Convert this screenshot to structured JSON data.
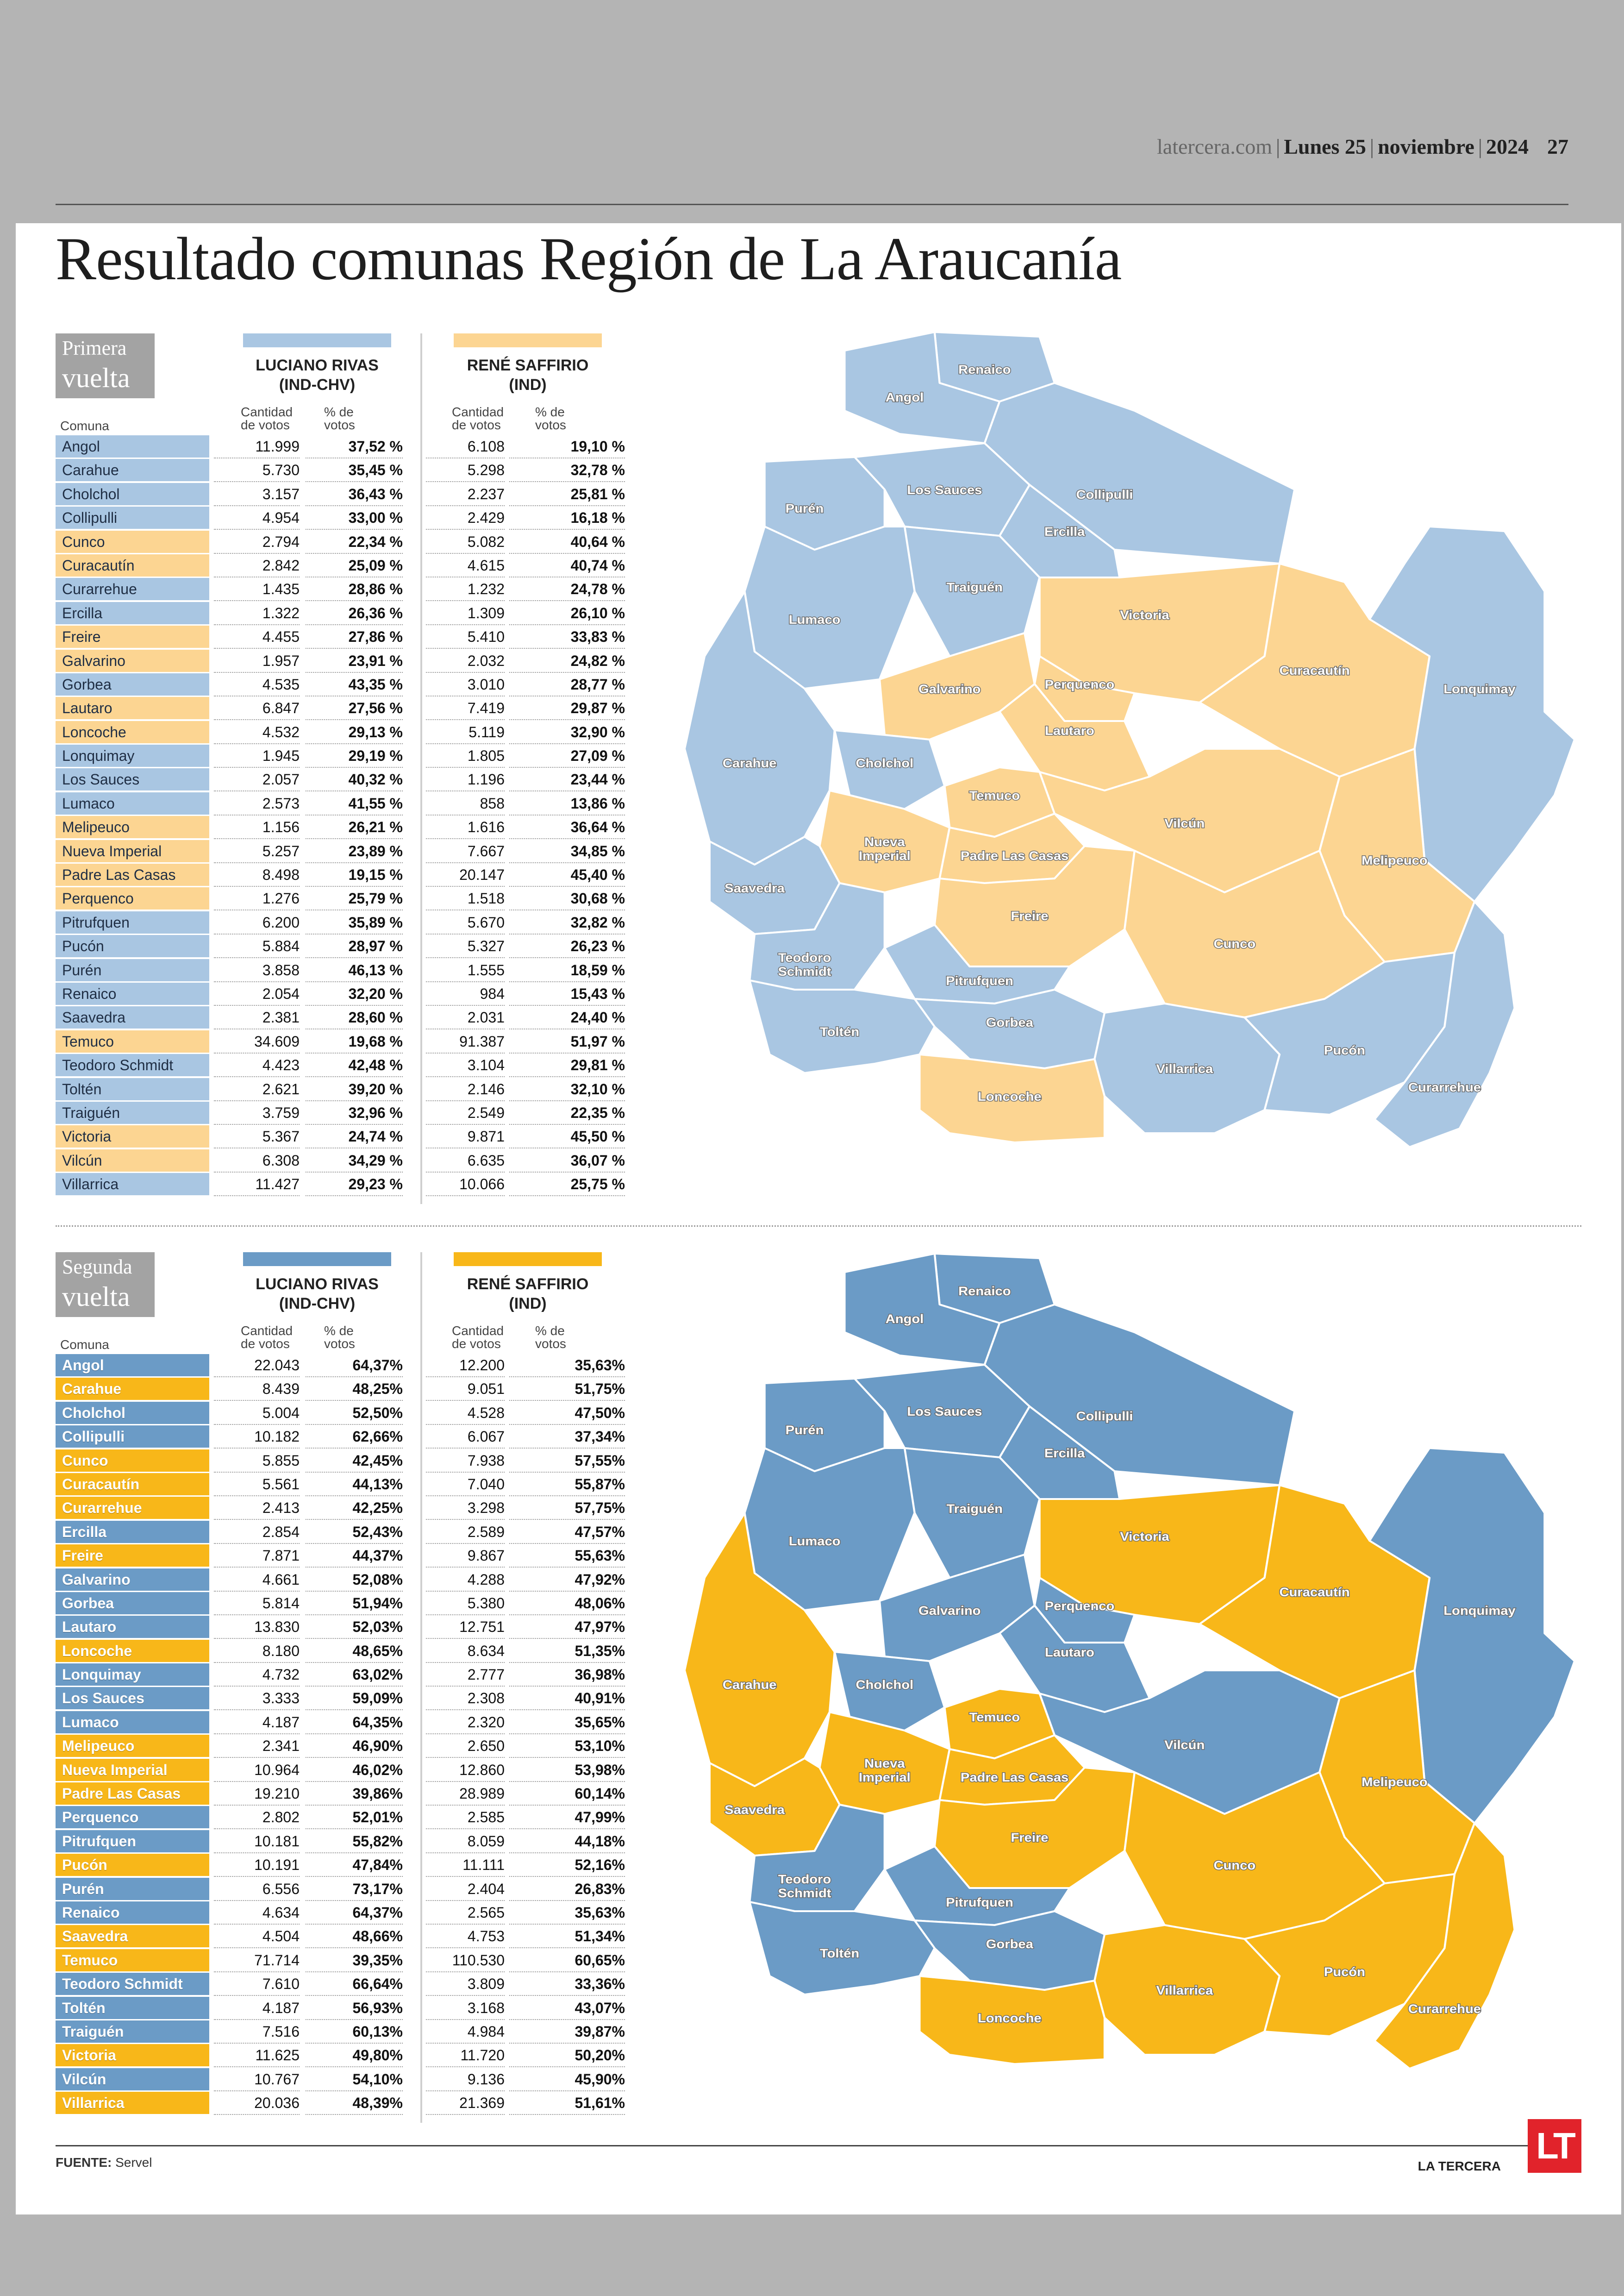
{
  "header": {
    "site": "latercera.com",
    "day": "Lunes 25",
    "month": "noviembre",
    "year": "2024",
    "page": "27"
  },
  "title": "Resultado comunas Región de La Araucanía",
  "colors": {
    "round1_rivas": "#a9c6e2",
    "round1_saffirio": "#fcd592",
    "round2_rivas": "#6b9bc6",
    "round2_saffirio": "#f8b719"
  },
  "labels": {
    "comuna": "Comuna",
    "cantidad": "Cantidad de votos",
    "porcentaje": "% de votos"
  },
  "candidates": [
    {
      "name": "LUCIANO RIVAS",
      "party": "(IND-CHV)"
    },
    {
      "name": "RENÉ SAFFIRIO",
      "party": "(IND)"
    }
  ],
  "rounds": [
    {
      "badge": [
        "Primera",
        "vuelta"
      ],
      "rows": [
        {
          "comuna": "Angol",
          "winner": "rivas",
          "rivas_votes": "11.999",
          "rivas_pct": "37,52 %",
          "saffirio_votes": "6.108",
          "saffirio_pct": "19,10 %"
        },
        {
          "comuna": "Carahue",
          "winner": "rivas",
          "rivas_votes": "5.730",
          "rivas_pct": "35,45 %",
          "saffirio_votes": "5.298",
          "saffirio_pct": "32,78 %"
        },
        {
          "comuna": "Cholchol",
          "winner": "rivas",
          "rivas_votes": "3.157",
          "rivas_pct": "36,43 %",
          "saffirio_votes": "2.237",
          "saffirio_pct": "25,81 %"
        },
        {
          "comuna": "Collipulli",
          "winner": "rivas",
          "rivas_votes": "4.954",
          "rivas_pct": "33,00 %",
          "saffirio_votes": "2.429",
          "saffirio_pct": "16,18 %"
        },
        {
          "comuna": "Cunco",
          "winner": "saffirio",
          "rivas_votes": "2.794",
          "rivas_pct": "22,34 %",
          "saffirio_votes": "5.082",
          "saffirio_pct": "40,64 %"
        },
        {
          "comuna": "Curacautín",
          "winner": "saffirio",
          "rivas_votes": "2.842",
          "rivas_pct": "25,09 %",
          "saffirio_votes": "4.615",
          "saffirio_pct": "40,74 %"
        },
        {
          "comuna": "Curarrehue",
          "winner": "rivas",
          "rivas_votes": "1.435",
          "rivas_pct": "28,86 %",
          "saffirio_votes": "1.232",
          "saffirio_pct": "24,78 %"
        },
        {
          "comuna": "Ercilla",
          "winner": "rivas",
          "rivas_votes": "1.322",
          "rivas_pct": "26,36 %",
          "saffirio_votes": "1.309",
          "saffirio_pct": "26,10 %"
        },
        {
          "comuna": "Freire",
          "winner": "saffirio",
          "rivas_votes": "4.455",
          "rivas_pct": "27,86 %",
          "saffirio_votes": "5.410",
          "saffirio_pct": "33,83 %"
        },
        {
          "comuna": "Galvarino",
          "winner": "saffirio",
          "rivas_votes": "1.957",
          "rivas_pct": "23,91 %",
          "saffirio_votes": "2.032",
          "saffirio_pct": "24,82 %"
        },
        {
          "comuna": "Gorbea",
          "winner": "rivas",
          "rivas_votes": "4.535",
          "rivas_pct": "43,35 %",
          "saffirio_votes": "3.010",
          "saffirio_pct": "28,77 %"
        },
        {
          "comuna": "Lautaro",
          "winner": "saffirio",
          "rivas_votes": "6.847",
          "rivas_pct": "27,56 %",
          "saffirio_votes": "7.419",
          "saffirio_pct": "29,87 %"
        },
        {
          "comuna": "Loncoche",
          "winner": "saffirio",
          "rivas_votes": "4.532",
          "rivas_pct": "29,13 %",
          "saffirio_votes": "5.119",
          "saffirio_pct": "32,90 %"
        },
        {
          "comuna": "Lonquimay",
          "winner": "rivas",
          "rivas_votes": "1.945",
          "rivas_pct": "29,19 %",
          "saffirio_votes": "1.805",
          "saffirio_pct": "27,09 %"
        },
        {
          "comuna": "Los Sauces",
          "winner": "rivas",
          "rivas_votes": "2.057",
          "rivas_pct": "40,32 %",
          "saffirio_votes": "1.196",
          "saffirio_pct": "23,44 %"
        },
        {
          "comuna": "Lumaco",
          "winner": "rivas",
          "rivas_votes": "2.573",
          "rivas_pct": "41,55 %",
          "saffirio_votes": "858",
          "saffirio_pct": "13,86 %"
        },
        {
          "comuna": "Melipeuco",
          "winner": "saffirio",
          "rivas_votes": "1.156",
          "rivas_pct": "26,21 %",
          "saffirio_votes": "1.616",
          "saffirio_pct": "36,64 %"
        },
        {
          "comuna": "Nueva Imperial",
          "winner": "saffirio",
          "rivas_votes": "5.257",
          "rivas_pct": "23,89 %",
          "saffirio_votes": "7.667",
          "saffirio_pct": "34,85 %"
        },
        {
          "comuna": "Padre Las Casas",
          "winner": "saffirio",
          "rivas_votes": "8.498",
          "rivas_pct": "19,15 %",
          "saffirio_votes": "20.147",
          "saffirio_pct": "45,40 %"
        },
        {
          "comuna": "Perquenco",
          "winner": "saffirio",
          "rivas_votes": "1.276",
          "rivas_pct": "25,79 %",
          "saffirio_votes": "1.518",
          "saffirio_pct": "30,68 %"
        },
        {
          "comuna": "Pitrufquen",
          "winner": "rivas",
          "rivas_votes": "6.200",
          "rivas_pct": "35,89 %",
          "saffirio_votes": "5.670",
          "saffirio_pct": "32,82 %"
        },
        {
          "comuna": "Pucón",
          "winner": "rivas",
          "rivas_votes": "5.884",
          "rivas_pct": "28,97 %",
          "saffirio_votes": "5.327",
          "saffirio_pct": "26,23 %"
        },
        {
          "comuna": "Purén",
          "winner": "rivas",
          "rivas_votes": "3.858",
          "rivas_pct": "46,13 %",
          "saffirio_votes": "1.555",
          "saffirio_pct": "18,59 %"
        },
        {
          "comuna": "Renaico",
          "winner": "rivas",
          "rivas_votes": "2.054",
          "rivas_pct": "32,20 %",
          "saffirio_votes": "984",
          "saffirio_pct": "15,43 %"
        },
        {
          "comuna": "Saavedra",
          "winner": "rivas",
          "rivas_votes": "2.381",
          "rivas_pct": "28,60 %",
          "saffirio_votes": "2.031",
          "saffirio_pct": "24,40 %"
        },
        {
          "comuna": "Temuco",
          "winner": "saffirio",
          "rivas_votes": "34.609",
          "rivas_pct": "19,68 %",
          "saffirio_votes": "91.387",
          "saffirio_pct": "51,97 %"
        },
        {
          "comuna": "Teodoro Schmidt",
          "winner": "rivas",
          "rivas_votes": "4.423",
          "rivas_pct": "42,48 %",
          "saffirio_votes": "3.104",
          "saffirio_pct": "29,81 %"
        },
        {
          "comuna": "Toltén",
          "winner": "rivas",
          "rivas_votes": "2.621",
          "rivas_pct": "39,20 %",
          "saffirio_votes": "2.146",
          "saffirio_pct": "32,10 %"
        },
        {
          "comuna": "Traiguén",
          "winner": "rivas",
          "rivas_votes": "3.759",
          "rivas_pct": "32,96 %",
          "saffirio_votes": "2.549",
          "saffirio_pct": "22,35 %"
        },
        {
          "comuna": "Victoria",
          "winner": "saffirio",
          "rivas_votes": "5.367",
          "rivas_pct": "24,74 %",
          "saffirio_votes": "9.871",
          "saffirio_pct": "45,50 %"
        },
        {
          "comuna": "Vilcún",
          "winner": "saffirio",
          "rivas_votes": "6.308",
          "rivas_pct": "34,29 %",
          "saffirio_votes": "6.635",
          "saffirio_pct": "36,07 %"
        },
        {
          "comuna": "Villarrica",
          "winner": "rivas",
          "rivas_votes": "11.427",
          "rivas_pct": "29,23 %",
          "saffirio_votes": "10.066",
          "saffirio_pct": "25,75 %"
        }
      ]
    },
    {
      "badge": [
        "Segunda",
        "vuelta"
      ],
      "rows": [
        {
          "comuna": "Angol",
          "winner": "rivas",
          "rivas_votes": "22.043",
          "rivas_pct": "64,37%",
          "saffirio_votes": "12.200",
          "saffirio_pct": "35,63%"
        },
        {
          "comuna": "Carahue",
          "winner": "saffirio",
          "rivas_votes": "8.439",
          "rivas_pct": "48,25%",
          "saffirio_votes": "9.051",
          "saffirio_pct": "51,75%"
        },
        {
          "comuna": "Cholchol",
          "winner": "rivas",
          "rivas_votes": "5.004",
          "rivas_pct": "52,50%",
          "saffirio_votes": "4.528",
          "saffirio_pct": "47,50%"
        },
        {
          "comuna": "Collipulli",
          "winner": "rivas",
          "rivas_votes": "10.182",
          "rivas_pct": "62,66%",
          "saffirio_votes": "6.067",
          "saffirio_pct": "37,34%"
        },
        {
          "comuna": "Cunco",
          "winner": "saffirio",
          "rivas_votes": "5.855",
          "rivas_pct": "42,45%",
          "saffirio_votes": "7.938",
          "saffirio_pct": "57,55%"
        },
        {
          "comuna": "Curacautín",
          "winner": "saffirio",
          "rivas_votes": "5.561",
          "rivas_pct": "44,13%",
          "saffirio_votes": "7.040",
          "saffirio_pct": "55,87%"
        },
        {
          "comuna": "Curarrehue",
          "winner": "saffirio",
          "rivas_votes": "2.413",
          "rivas_pct": "42,25%",
          "saffirio_votes": "3.298",
          "saffirio_pct": "57,75%"
        },
        {
          "comuna": "Ercilla",
          "winner": "rivas",
          "rivas_votes": "2.854",
          "rivas_pct": "52,43%",
          "saffirio_votes": "2.589",
          "saffirio_pct": "47,57%"
        },
        {
          "comuna": "Freire",
          "winner": "saffirio",
          "rivas_votes": "7.871",
          "rivas_pct": "44,37%",
          "saffirio_votes": "9.867",
          "saffirio_pct": "55,63%"
        },
        {
          "comuna": "Galvarino",
          "winner": "rivas",
          "rivas_votes": "4.661",
          "rivas_pct": "52,08%",
          "saffirio_votes": "4.288",
          "saffirio_pct": "47,92%"
        },
        {
          "comuna": "Gorbea",
          "winner": "rivas",
          "rivas_votes": "5.814",
          "rivas_pct": "51,94%",
          "saffirio_votes": "5.380",
          "saffirio_pct": "48,06%"
        },
        {
          "comuna": "Lautaro",
          "winner": "rivas",
          "rivas_votes": "13.830",
          "rivas_pct": "52,03%",
          "saffirio_votes": "12.751",
          "saffirio_pct": "47,97%"
        },
        {
          "comuna": "Loncoche",
          "winner": "saffirio",
          "rivas_votes": "8.180",
          "rivas_pct": "48,65%",
          "saffirio_votes": "8.634",
          "saffirio_pct": "51,35%"
        },
        {
          "comuna": "Lonquimay",
          "winner": "rivas",
          "rivas_votes": "4.732",
          "rivas_pct": "63,02%",
          "saffirio_votes": "2.777",
          "saffirio_pct": "36,98%"
        },
        {
          "comuna": "Los Sauces",
          "winner": "rivas",
          "rivas_votes": "3.333",
          "rivas_pct": "59,09%",
          "saffirio_votes": "2.308",
          "saffirio_pct": "40,91%"
        },
        {
          "comuna": "Lumaco",
          "winner": "rivas",
          "rivas_votes": "4.187",
          "rivas_pct": "64,35%",
          "saffirio_votes": "2.320",
          "saffirio_pct": "35,65%"
        },
        {
          "comuna": "Melipeuco",
          "winner": "saffirio",
          "rivas_votes": "2.341",
          "rivas_pct": "46,90%",
          "saffirio_votes": "2.650",
          "saffirio_pct": "53,10%"
        },
        {
          "comuna": "Nueva Imperial",
          "winner": "saffirio",
          "rivas_votes": "10.964",
          "rivas_pct": "46,02%",
          "saffirio_votes": "12.860",
          "saffirio_pct": "53,98%"
        },
        {
          "comuna": "Padre Las Casas",
          "winner": "saffirio",
          "rivas_votes": "19.210",
          "rivas_pct": "39,86%",
          "saffirio_votes": "28.989",
          "saffirio_pct": "60,14%"
        },
        {
          "comuna": "Perquenco",
          "winner": "rivas",
          "rivas_votes": "2.802",
          "rivas_pct": "52,01%",
          "saffirio_votes": "2.585",
          "saffirio_pct": "47,99%"
        },
        {
          "comuna": "Pitrufquen",
          "winner": "rivas",
          "rivas_votes": "10.181",
          "rivas_pct": "55,82%",
          "saffirio_votes": "8.059",
          "saffirio_pct": "44,18%"
        },
        {
          "comuna": "Pucón",
          "winner": "saffirio",
          "rivas_votes": "10.191",
          "rivas_pct": "47,84%",
          "saffirio_votes": "11.111",
          "saffirio_pct": "52,16%"
        },
        {
          "comuna": "Purén",
          "winner": "rivas",
          "rivas_votes": "6.556",
          "rivas_pct": "73,17%",
          "saffirio_votes": "2.404",
          "saffirio_pct": "26,83%"
        },
        {
          "comuna": "Renaico",
          "winner": "rivas",
          "rivas_votes": "4.634",
          "rivas_pct": "64,37%",
          "saffirio_votes": "2.565",
          "saffirio_pct": "35,63%"
        },
        {
          "comuna": "Saavedra",
          "winner": "saffirio",
          "rivas_votes": "4.504",
          "rivas_pct": "48,66%",
          "saffirio_votes": "4.753",
          "saffirio_pct": "51,34%"
        },
        {
          "comuna": "Temuco",
          "winner": "saffirio",
          "rivas_votes": "71.714",
          "rivas_pct": "39,35%",
          "saffirio_votes": "110.530",
          "saffirio_pct": "60,65%"
        },
        {
          "comuna": "Teodoro Schmidt",
          "winner": "rivas",
          "rivas_votes": "7.610",
          "rivas_pct": "66,64%",
          "saffirio_votes": "3.809",
          "saffirio_pct": "33,36%"
        },
        {
          "comuna": "Toltén",
          "winner": "rivas",
          "rivas_votes": "4.187",
          "rivas_pct": "56,93%",
          "saffirio_votes": "3.168",
          "saffirio_pct": "43,07%"
        },
        {
          "comuna": "Traiguén",
          "winner": "rivas",
          "rivas_votes": "7.516",
          "rivas_pct": "60,13%",
          "saffirio_votes": "4.984",
          "saffirio_pct": "39,87%"
        },
        {
          "comuna": "Victoria",
          "winner": "saffirio",
          "rivas_votes": "11.625",
          "rivas_pct": "49,80%",
          "saffirio_votes": "11.720",
          "saffirio_pct": "50,20%"
        },
        {
          "comuna": "Vilcún",
          "winner": "rivas",
          "rivas_votes": "10.767",
          "rivas_pct": "54,10%",
          "saffirio_votes": "9.136",
          "saffirio_pct": "45,90%"
        },
        {
          "comuna": "Villarrica",
          "winner": "saffirio",
          "rivas_votes": "20.036",
          "rivas_pct": "48,39%",
          "saffirio_votes": "21.369",
          "saffirio_pct": "51,61%"
        }
      ]
    }
  ],
  "map_labels": [
    "Renaico",
    "Angol",
    "Los Sauces",
    "Purén",
    "Collipulli",
    "Ercilla",
    "Traiguén",
    "Lumaco",
    "Victoria",
    "Curacautín",
    "Lonquimay",
    "Galvarino",
    "Perquenco",
    "Lautaro",
    "Carahue",
    "Cholchol",
    "Temuco",
    "Vilcún",
    "Nueva Imperial",
    "Padre Las Casas",
    "Melipeuco",
    "Saavedra",
    "Freire",
    "Cunco",
    "Teodoro Schmidt",
    "Pitrufquen",
    "Gorbea",
    "Toltén",
    "Loncoche",
    "Villarrica",
    "Pucón",
    "Curarrehue"
  ],
  "footer": {
    "source_label": "FUENTE:",
    "source": "Servel",
    "brand": "LA TERCERA",
    "logo": "LT"
  }
}
